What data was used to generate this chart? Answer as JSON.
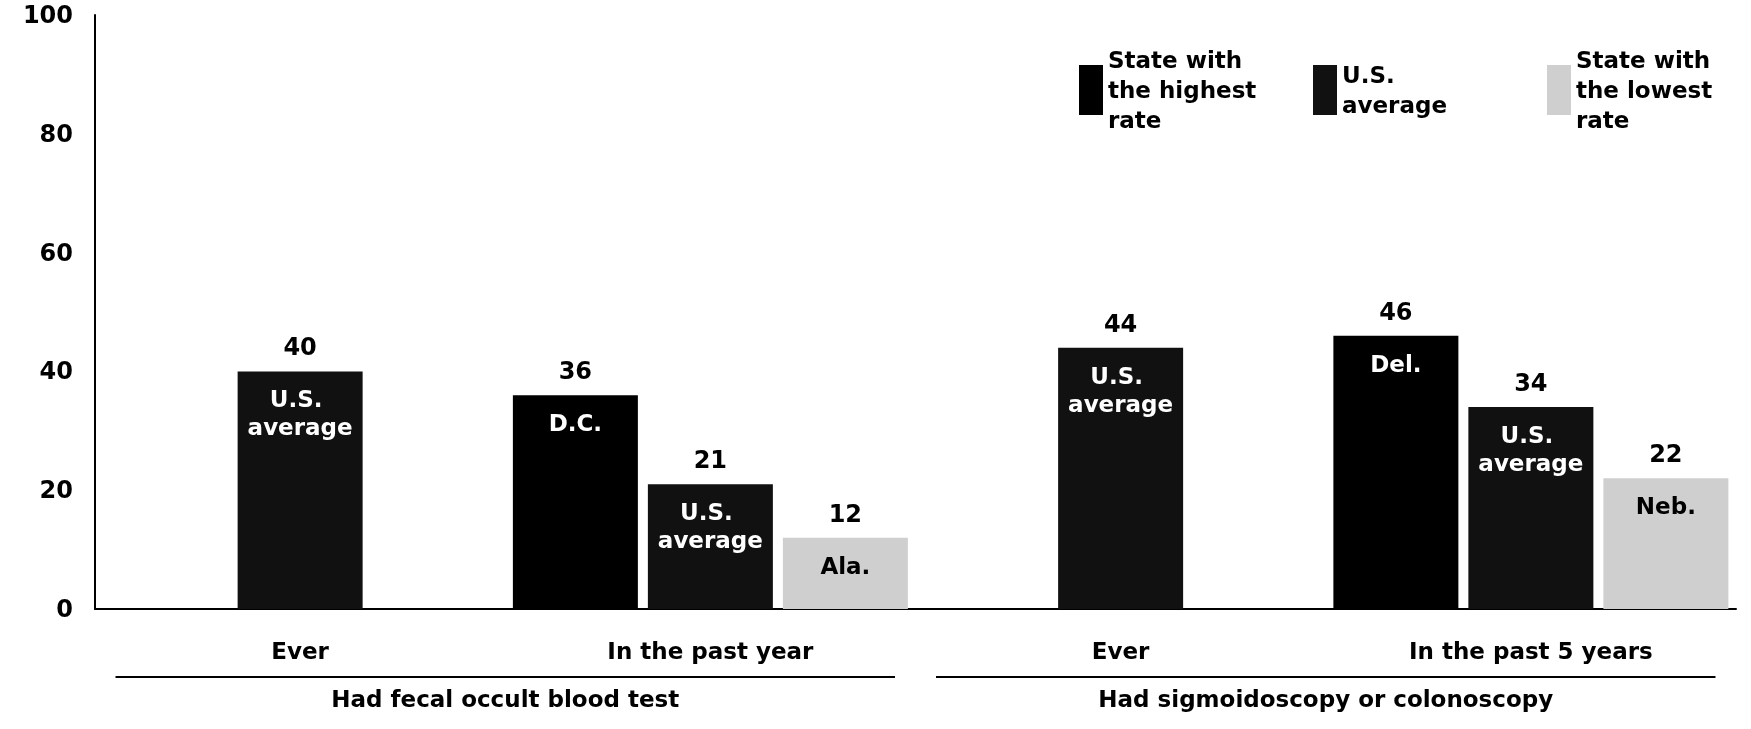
{
  "chart_data": {
    "type": "bar",
    "categories": [
      "Ever",
      "In the past year",
      "Ever",
      "In the past 5 years"
    ],
    "series": [
      {
        "name": "State with the highest rate",
        "color": "#000000",
        "values": [
          null,
          36,
          null,
          46
        ]
      },
      {
        "name": "U.S. average",
        "color": "#111111",
        "values": [
          40,
          21,
          44,
          34
        ]
      },
      {
        "name": "State with the lowest rate",
        "color": "#cfcfcf",
        "values": [
          null,
          12,
          null,
          22
        ]
      }
    ],
    "ylim": [
      0,
      100
    ],
    "yticks": [
      0,
      20,
      40,
      60,
      80,
      100
    ],
    "grid": false,
    "legend": "top right",
    "data_labels": true,
    "annotations": [
      "Had fecal occult blood test",
      "Had sigmoidoscopy or colonoscopy",
      "U.S. average",
      "D.C.",
      "U.S. average",
      "Ala.",
      "U.S. average",
      "Del.",
      "U.S. average",
      "Neb."
    ]
  }
}
